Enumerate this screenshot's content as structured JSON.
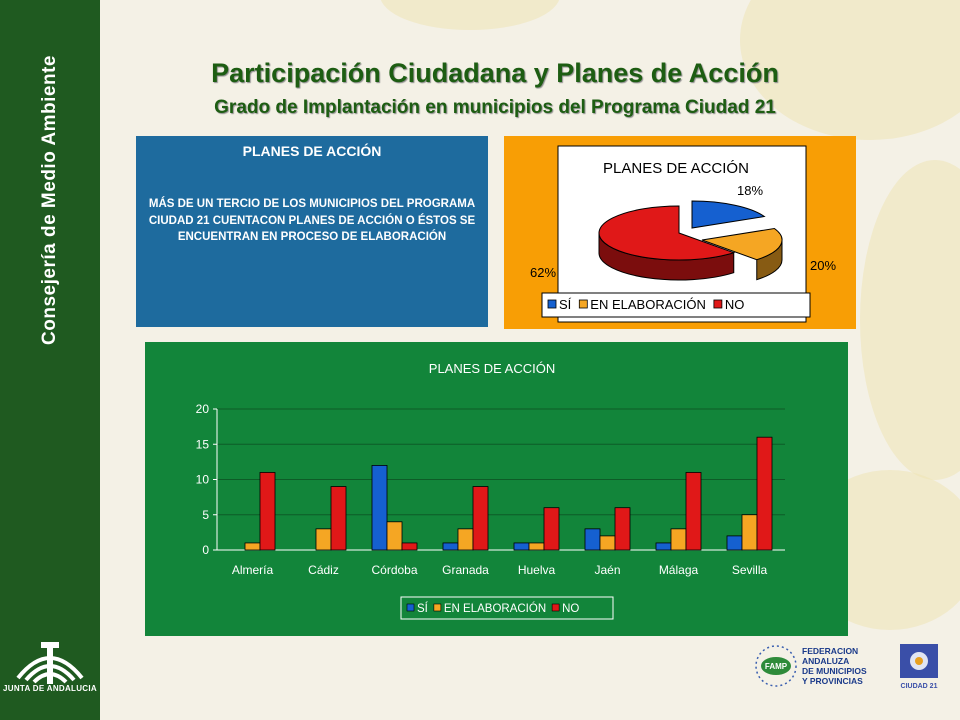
{
  "sidebar": {
    "title": "Consejería de Medio Ambiente",
    "logo_text": "JUNTA DE ANDALUCIA"
  },
  "header": {
    "title": "Participación Ciudadana y Planes de Acción",
    "subtitle": "Grado de Implantación en municipios del Programa Ciudad 21"
  },
  "textbox": {
    "heading": "PLANES DE ACCIÓN",
    "body": "MÁS DE UN TERCIO DE LOS MUNICIPIOS DEL PROGRAMA CIUDAD 21 CUENTACON PLANES DE ACCIÓN O ÉSTOS SE ENCUENTRAN EN PROCESO DE ELABORACIÓN"
  },
  "footer_logos": {
    "famp_abbr": "FAMP",
    "famp_lines": [
      "FEDERACION",
      "ANDALUZA",
      "DE MUNICIPIOS",
      "Y PROVINCIAS"
    ],
    "ciudad21": "CIUDAD 21"
  },
  "colors": {
    "si": "#1560d0",
    "elaboracion": "#f5a623",
    "no": "#e01818"
  },
  "chart_data": [
    {
      "type": "pie",
      "title": "PLANES DE ACCIÓN",
      "labels": [
        "SÍ",
        "EN ELABORACIÓN",
        "NO"
      ],
      "values": [
        18,
        20,
        62
      ],
      "value_labels": [
        "18%",
        "20%",
        "62%"
      ],
      "legend": "bottom"
    },
    {
      "type": "bar",
      "title": "PLANES DE ACCIÓN",
      "categories": [
        "Almería",
        "Cádiz",
        "Córdoba",
        "Granada",
        "Huelva",
        "Jaén",
        "Málaga",
        "Sevilla"
      ],
      "series": [
        {
          "name": "SÍ",
          "values": [
            0,
            0,
            12,
            1,
            1,
            3,
            1,
            2
          ]
        },
        {
          "name": "EN ELABORACIÓN",
          "values": [
            1,
            3,
            4,
            3,
            1,
            2,
            3,
            5
          ]
        },
        {
          "name": "NO",
          "values": [
            11,
            9,
            1,
            9,
            6,
            6,
            11,
            16
          ]
        }
      ],
      "ylim": [
        0,
        20
      ],
      "yticks": [
        "0",
        "5",
        "10",
        "15",
        "20"
      ],
      "legend": "bottom"
    }
  ]
}
